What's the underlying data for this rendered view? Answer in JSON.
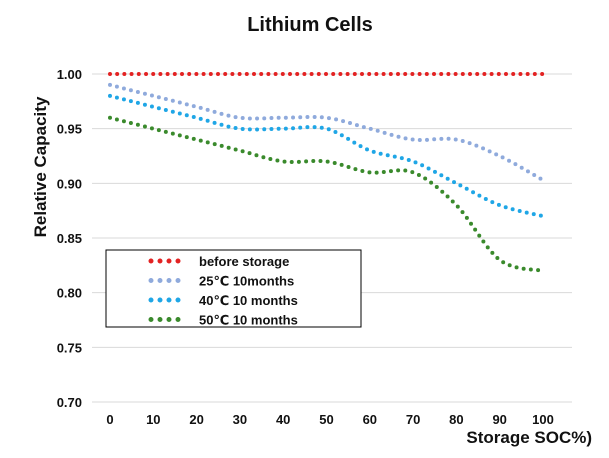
{
  "chart_data": {
    "type": "line",
    "title": "Lithium Cells",
    "xlabel": "Storage SOC%)",
    "ylabel": "Relative Capacity",
    "x": [
      0,
      10,
      20,
      30,
      40,
      50,
      60,
      70,
      80,
      90,
      100
    ],
    "xlim": [
      0,
      100
    ],
    "ylim": [
      0.7,
      1.0
    ],
    "yticks": [
      "0.70",
      "0.75",
      "0.80",
      "0.85",
      "0.90",
      "0.95",
      "1.00"
    ],
    "grid": "horizontal",
    "legend_position": "lower-left",
    "line_style": "dotted",
    "series": [
      {
        "name": "before storage",
        "color": "#e32222",
        "values": [
          1.0,
          1.0,
          1.0,
          1.0,
          1.0,
          1.0,
          1.0,
          1.0,
          1.0,
          1.0,
          1.0
        ]
      },
      {
        "name": "25℃  10months",
        "color": "#8faadc",
        "values": [
          0.99,
          0.98,
          0.97,
          0.96,
          0.96,
          0.96,
          0.95,
          0.94,
          0.94,
          0.925,
          0.903
        ]
      },
      {
        "name": "40℃ 10 months",
        "color": "#1fa6e6",
        "values": [
          0.98,
          0.97,
          0.96,
          0.95,
          0.95,
          0.95,
          0.93,
          0.92,
          0.9,
          0.88,
          0.87
        ]
      },
      {
        "name": "50℃ 10 months",
        "color": "#3a8a2c",
        "values": [
          0.96,
          0.95,
          0.94,
          0.93,
          0.92,
          0.92,
          0.91,
          0.91,
          0.88,
          0.83,
          0.82
        ]
      }
    ]
  }
}
